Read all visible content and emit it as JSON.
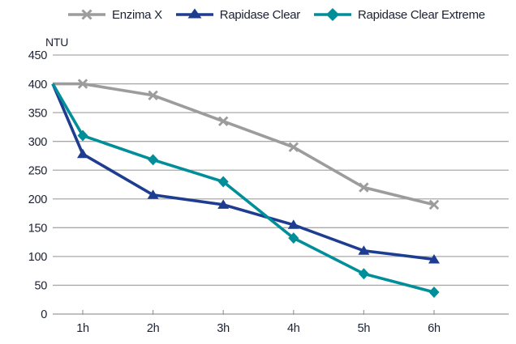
{
  "chart_data": {
    "type": "line",
    "title": "",
    "ylabel": "NTU",
    "xlabel": "",
    "ylim": [
      0,
      450
    ],
    "y_ticks": [
      450,
      400,
      350,
      300,
      250,
      200,
      150,
      100,
      50,
      0
    ],
    "x_labels": [
      "1h",
      "2h",
      "3h",
      "4h",
      "5h",
      "6h"
    ],
    "grid": "horizontal",
    "legend_position": "top",
    "series": [
      {
        "name": "Enzima X",
        "color": "#9c9c9c",
        "marker": "x",
        "start_value": 400,
        "values": [
          400,
          380,
          335,
          290,
          220,
          190
        ]
      },
      {
        "name": "Rapidase Clear",
        "color": "#1e3c90",
        "marker": "triangle",
        "start_value": 400,
        "values": [
          278,
          207,
          190,
          155,
          110,
          95
        ]
      },
      {
        "name": "Rapidase Clear Extreme",
        "color": "#008e99",
        "marker": "diamond",
        "start_value": 400,
        "values": [
          310,
          268,
          230,
          132,
          70,
          38
        ]
      }
    ],
    "colors": {
      "gridline": "#a9a9a9",
      "axis": "#9b9b9b",
      "text": "#1b2132"
    }
  }
}
